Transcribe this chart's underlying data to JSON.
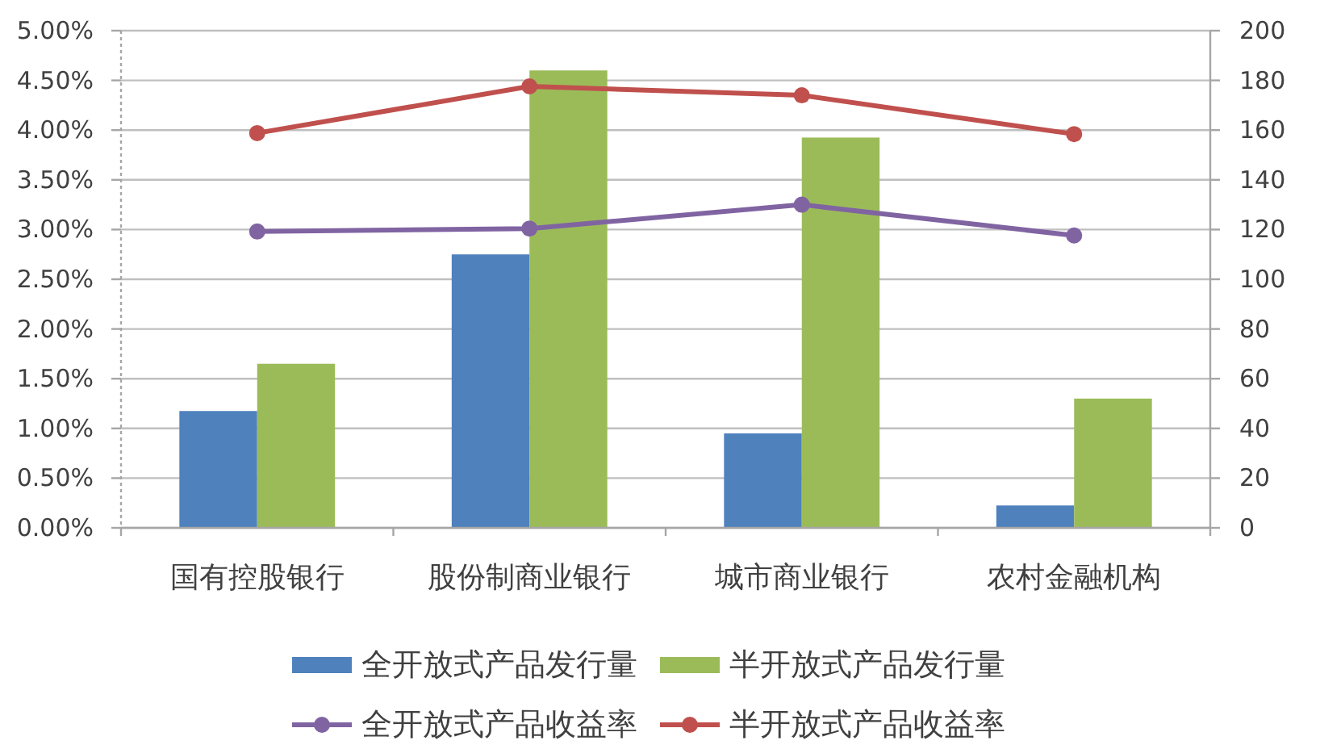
{
  "chart_data": {
    "type": "bar",
    "categories": [
      "国有控股银行",
      "股份制商业银行",
      "城市商业银行",
      "农村金融机构"
    ],
    "series": [
      {
        "name": "全开放式产品发行量",
        "color": "#4f81bd",
        "axis": "y2",
        "values": [
          47,
          110,
          38,
          9
        ]
      },
      {
        "name": "半开放式产品发行量",
        "color": "#9bbb59",
        "axis": "y2",
        "values": [
          66,
          184,
          157,
          52
        ]
      },
      {
        "name": "全开放式产品收益率",
        "type": "line",
        "color": "#8064a2",
        "values": [
          2.98,
          3.01,
          3.25,
          2.94
        ]
      },
      {
        "name": "半开放式产品收益率",
        "type": "line",
        "color": "#c0504d",
        "values": [
          3.97,
          4.44,
          4.35,
          3.96
        ]
      }
    ],
    "ylim": [
      0,
      5
    ],
    "yticks": [
      {
        "value": 0,
        "label": "0.00%"
      },
      {
        "value": 0.5,
        "label": "0.50%"
      },
      {
        "value": 1,
        "label": "1.00%"
      },
      {
        "value": 1.5,
        "label": "1.50%"
      },
      {
        "value": 2,
        "label": "2.00%"
      },
      {
        "value": 2.5,
        "label": "2.50%"
      },
      {
        "value": 3,
        "label": "3.00%"
      },
      {
        "value": 3.5,
        "label": "3.50%"
      },
      {
        "value": 4,
        "label": "4.00%"
      },
      {
        "value": 4.5,
        "label": "4.50%"
      },
      {
        "value": 5,
        "label": "5.00%"
      }
    ],
    "y2lim": [
      0,
      200
    ],
    "y2ticks": [
      0,
      20,
      40,
      60,
      80,
      100,
      120,
      140,
      160,
      180,
      200
    ],
    "grid": "y",
    "legend": "bottom",
    "marker": "circle"
  }
}
